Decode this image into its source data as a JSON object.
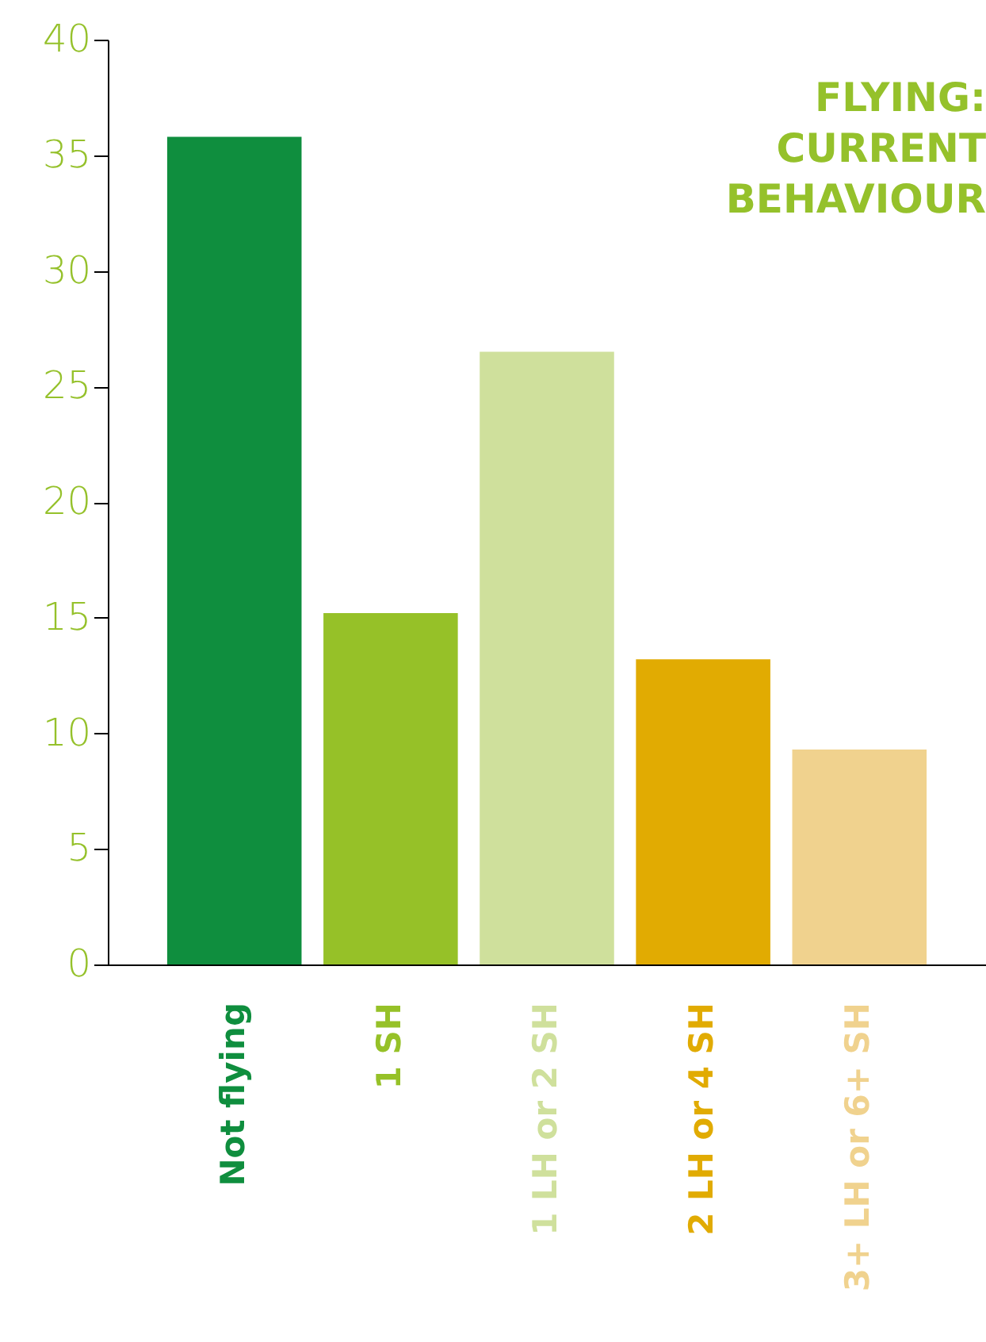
{
  "chart_data": {
    "type": "bar",
    "title": "FLYING:\nCURRENT\nBEHAVIOUR",
    "categories": [
      "Not flying",
      "1 SH",
      "1 LH or 2 SH",
      "2 LH or 4 SH",
      "3+ LH or 6+ SH"
    ],
    "values": [
      35.8,
      15.2,
      26.5,
      13.2,
      9.3
    ],
    "colors": [
      "#0f8e3e",
      "#96c128",
      "#cfe09c",
      "#e1ab02",
      "#f0d28e"
    ],
    "ylim": [
      0,
      40
    ],
    "yticks": [
      0,
      5,
      10,
      15,
      20,
      25,
      30,
      35,
      40
    ],
    "grid": false
  }
}
